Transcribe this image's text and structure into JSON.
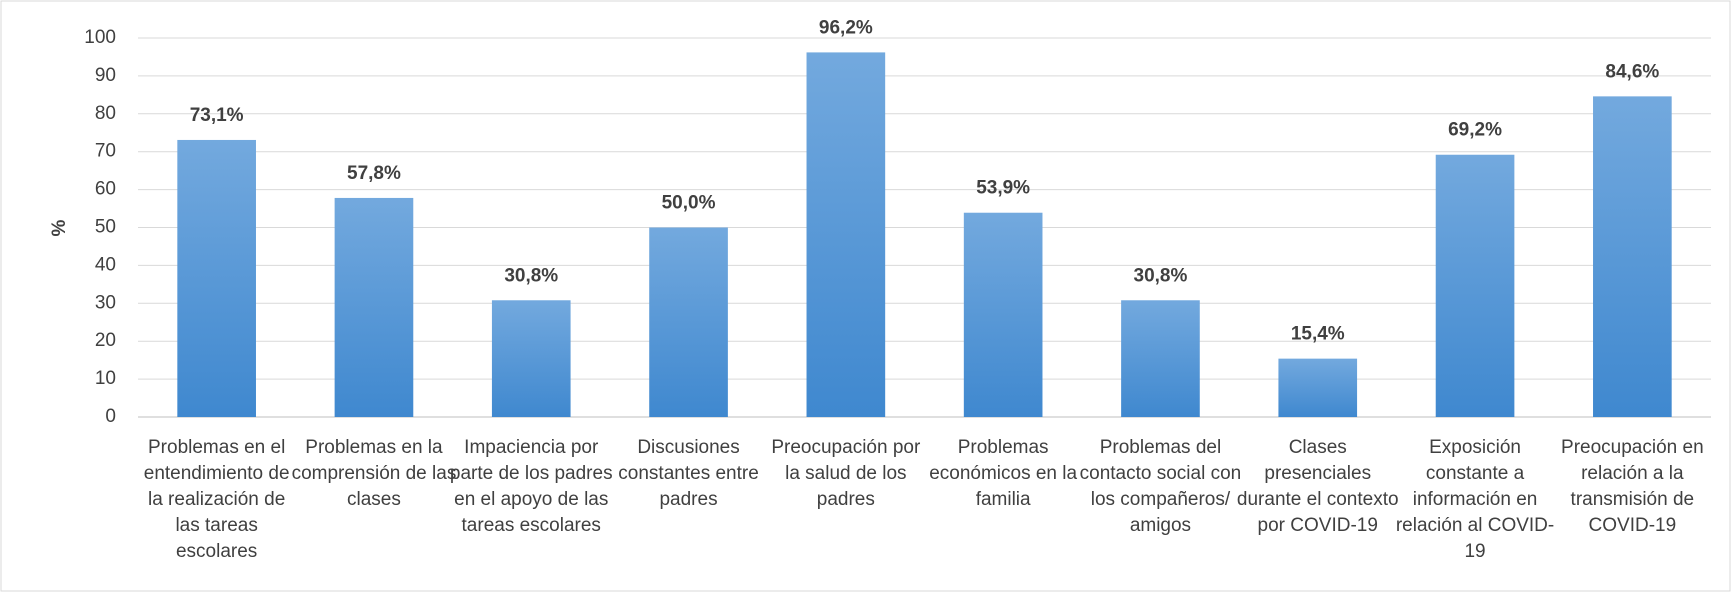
{
  "chart_data": {
    "type": "bar",
    "y_label": "%",
    "categories": [
      "Problemas en el entendimiento de la realización de las tareas escolares",
      "Problemas en la comprensión de las clases",
      "Impaciencia por parte de los padres en el apoyo de las tareas escolares",
      "Discusiones constantes entre padres",
      "Preocupación por la salud de los padres",
      "Problemas económicos en la familia",
      "Problemas del contacto social con los compañeros/ amigos",
      "Clases presenciales durante el contexto por COVID-19",
      "Exposición constante a información en relación al COVID-19",
      "Preocupación en relación a la transmisión de COVID-19"
    ],
    "values": [
      73.1,
      57.8,
      30.8,
      50.0,
      96.2,
      53.9,
      30.8,
      15.4,
      69.2,
      84.6
    ],
    "value_labels": [
      "73,1%",
      "57,8%",
      "30,8%",
      "50,0%",
      "96,2%",
      "53,9%",
      "30,8%",
      "15,4%",
      "69,2%",
      "84,6%"
    ],
    "color": "#5b9bd5",
    "ylim": [
      0,
      100
    ],
    "yticks": [
      0,
      10,
      20,
      30,
      40,
      50,
      60,
      70,
      80,
      90,
      100
    ],
    "grid": true
  }
}
